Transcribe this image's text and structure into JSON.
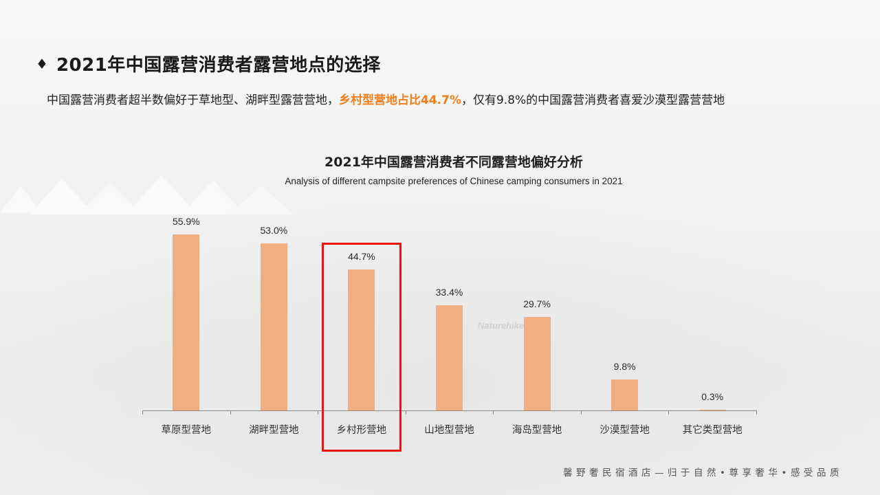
{
  "header": {
    "bullet_icon": "diamond-icon",
    "title": "2021年中国露营消费者露营地点的选择"
  },
  "subtitle": {
    "part1": "中国露营消费者超半数偏好于草地型、湖畔型露营营地，",
    "highlight": "乡村型营地占比44.7%",
    "part2": "，仅有9.8%的中国露营消费者喜爱沙漠型露营营地",
    "highlight_color": "#f07f1a"
  },
  "chart_data": {
    "type": "bar",
    "title": "2021年中国露营消费者不同露营地偏好分析",
    "subtitle": "Analysis of different campsite preferences of Chinese camping consumers in 2021",
    "categories": [
      "草原型营地",
      "湖畔型营地",
      "乡村形营地",
      "山地型营地",
      "海岛型营地",
      "沙漠型营地",
      "其它类型营地"
    ],
    "values": [
      55.9,
      53.0,
      44.7,
      33.4,
      29.7,
      9.8,
      0.3
    ],
    "value_labels": [
      "55.9%",
      "53.0%",
      "44.7%",
      "33.4%",
      "29.7%",
      "9.8%",
      "0.3%"
    ],
    "xlabel": "",
    "ylabel": "",
    "ylim": [
      0,
      60
    ],
    "grid": false,
    "legend": null,
    "bar_color": "#f0ae82",
    "highlighted_category": "乡村形营地",
    "highlight_box_color": "#ee1111"
  },
  "watermark": "Naturehike",
  "footer": "馨野奢民宿酒店—归于自然•尊享奢华•感受品质"
}
